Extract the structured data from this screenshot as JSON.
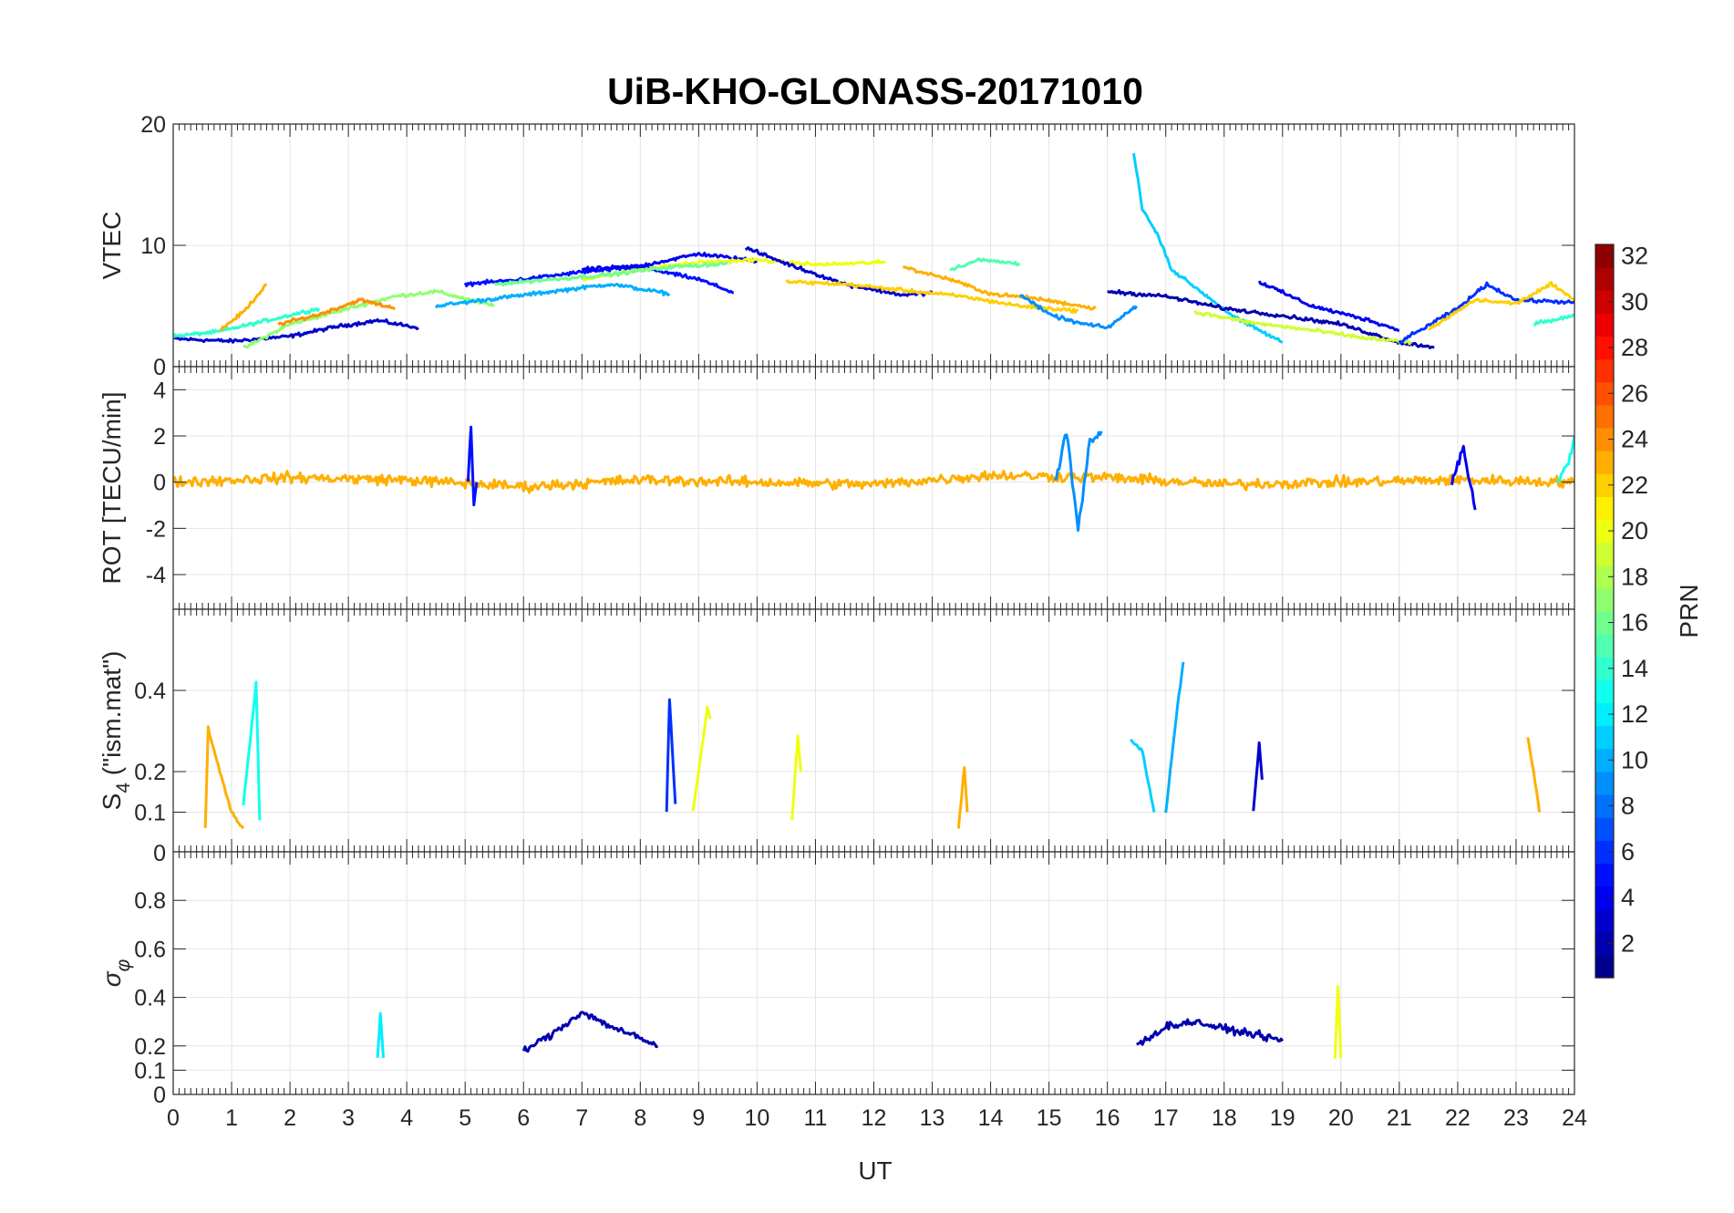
{
  "chart_data": {
    "type": "line",
    "title": "UiB-KHO-GLONASS-20171010",
    "xlabel": "UT",
    "xlim": [
      0,
      24
    ],
    "xticks": [
      "0",
      "1",
      "2",
      "3",
      "4",
      "5",
      "6",
      "7",
      "8",
      "9",
      "10",
      "11",
      "12",
      "13",
      "14",
      "15",
      "16",
      "17",
      "18",
      "19",
      "20",
      "21",
      "22",
      "23",
      "24"
    ],
    "colorbar": {
      "label": "PRN",
      "range": [
        1,
        32
      ],
      "ticks": [
        "2",
        "4",
        "6",
        "8",
        "10",
        "12",
        "14",
        "16",
        "18",
        "20",
        "22",
        "24",
        "26",
        "28",
        "30",
        "32"
      ]
    },
    "panels": [
      {
        "id": "vtec",
        "ylabel": "VTEC",
        "ylim": [
          0,
          20
        ],
        "yticks": [
          {
            "v": 0,
            "t": "0"
          },
          {
            "v": 10,
            "t": "10"
          },
          {
            "v": 20,
            "t": "20"
          }
        ],
        "series": [
          {
            "prn": 3,
            "x": [
              0,
              1.0,
              2.0,
              2.8,
              3.5,
              4.2
            ],
            "y": [
              2.3,
              2.1,
              2.5,
              3.3,
              3.8,
              3.2
            ]
          },
          {
            "prn": 14,
            "x": [
              0,
              0.8,
              1.6,
              2.5
            ],
            "y": [
              2.5,
              2.9,
              3.8,
              4.8
            ]
          },
          {
            "prn": 23,
            "x": [
              0.8,
              1.2,
              1.6
            ],
            "y": [
              3.0,
              4.5,
              6.8
            ]
          },
          {
            "prn": 17,
            "x": [
              1.2,
              2.0,
              3.0,
              3.8,
              4.5,
              5.5
            ],
            "y": [
              1.5,
              3.5,
              4.8,
              5.8,
              6.2,
              5.0
            ]
          },
          {
            "prn": 24,
            "x": [
              1.8,
              2.5,
              3.2,
              3.8
            ],
            "y": [
              3.5,
              4.3,
              5.5,
              4.8
            ]
          },
          {
            "prn": 10,
            "x": [
              4.5,
              5.5,
              6.5,
              7.5,
              8.5
            ],
            "y": [
              5.0,
              5.6,
              6.2,
              6.8,
              6.0
            ]
          },
          {
            "prn": 5,
            "x": [
              5.0,
              6.0,
              7.0,
              8.0,
              9.0,
              9.6
            ],
            "y": [
              6.8,
              7.2,
              7.8,
              8.2,
              7.2,
              6.1
            ]
          },
          {
            "prn": 4,
            "x": [
              7.0,
              8.0,
              9.0,
              10.0
            ],
            "y": [
              8.0,
              8.3,
              9.3,
              8.7
            ]
          },
          {
            "prn": 20,
            "x": [
              7.0,
              8.0,
              9.0,
              10.0,
              11.0,
              12.2
            ],
            "y": [
              7.2,
              8.0,
              8.6,
              8.8,
              8.4,
              8.6
            ]
          },
          {
            "prn": 16,
            "x": [
              5.5,
              6.5,
              7.5,
              8.5,
              9.5
            ],
            "y": [
              6.8,
              7.2,
              7.6,
              8.2,
              8.5
            ]
          },
          {
            "prn": 3,
            "x": [
              9.8,
              10.5,
              11.5,
              12.5,
              13.0
            ],
            "y": [
              9.8,
              8.5,
              6.8,
              5.9,
              6.1
            ]
          },
          {
            "prn": 22,
            "x": [
              10.5,
              11.5,
              12.5,
              13.5,
              14.5,
              15.5
            ],
            "y": [
              7.0,
              6.8,
              6.3,
              5.8,
              5.0,
              4.6
            ]
          },
          {
            "prn": 23,
            "x": [
              12.5,
              13.3,
              14.0,
              14.8,
              15.8
            ],
            "y": [
              8.2,
              7.2,
              6.0,
              5.6,
              4.8
            ]
          },
          {
            "prn": 15,
            "x": [
              13.3,
              13.8,
              14.5
            ],
            "y": [
              8.0,
              8.8,
              8.5
            ]
          },
          {
            "prn": 9,
            "x": [
              14.5,
              15.0,
              15.5,
              16.0,
              16.5
            ],
            "y": [
              6.0,
              4.3,
              3.6,
              3.2,
              5.0
            ]
          },
          {
            "prn": 11,
            "x": [
              16.45,
              16.6,
              16.9,
              17.1,
              17.6,
              18.2,
              19.0
            ],
            "y": [
              17.7,
              13.0,
              10.5,
              8.0,
              6.2,
              4.0,
              2.0
            ]
          },
          {
            "prn": 2,
            "x": [
              16.0,
              17.0,
              18.0,
              19.0,
              20.0,
              21.0,
              21.6
            ],
            "y": [
              6.2,
              5.8,
              4.8,
              4.2,
              3.5,
              2.0,
              1.6
            ]
          },
          {
            "prn": 4,
            "x": [
              18.6,
              19.5,
              20.5,
              21.0
            ],
            "y": [
              7.0,
              5.0,
              3.8,
              3.0
            ]
          },
          {
            "prn": 19,
            "x": [
              17.5,
              18.5,
              19.5,
              20.5,
              21.2
            ],
            "y": [
              4.5,
              3.6,
              3.0,
              2.3,
              2.0
            ]
          },
          {
            "prn": 6,
            "x": [
              21.0,
              22.0,
              22.5,
              23.0,
              24.0
            ],
            "y": [
              2.0,
              4.8,
              6.8,
              5.5,
              5.3
            ]
          },
          {
            "prn": 22,
            "x": [
              21.5,
              22.3,
              23.0,
              23.6,
              24.0
            ],
            "y": [
              3.0,
              5.5,
              5.2,
              6.8,
              5.5
            ]
          },
          {
            "prn": 14,
            "x": [
              23.3,
              23.7,
              24.0
            ],
            "y": [
              3.6,
              3.9,
              4.2
            ]
          }
        ]
      },
      {
        "id": "rot",
        "ylabel": "ROT [TECU/min]",
        "ylim": [
          -5.5,
          5
        ],
        "yticks": [
          {
            "v": -4,
            "t": "-4"
          },
          {
            "v": -2,
            "t": "-2"
          },
          {
            "v": 0,
            "t": "0"
          },
          {
            "v": 2,
            "t": "2"
          },
          {
            "v": 4,
            "t": "4"
          }
        ],
        "series": [
          {
            "prn": 23,
            "x": [
              0,
              2.0,
              4.0,
              6.0,
              8.0,
              10.0,
              12.0,
              14.0,
              16.0,
              18.0,
              20.0,
              22.0,
              24.0
            ],
            "y": [
              0,
              0.2,
              0.1,
              -0.2,
              0.1,
              0,
              -0.1,
              0.3,
              0.2,
              -0.1,
              0,
              0.1,
              0
            ]
          },
          {
            "prn": 5,
            "x": [
              5.05,
              5.1,
              5.15,
              5.2
            ],
            "y": [
              0,
              2.3,
              -1.0,
              0
            ]
          },
          {
            "prn": 9,
            "x": [
              15.1,
              15.3,
              15.5,
              15.7,
              15.9
            ],
            "y": [
              0,
              2.2,
              -2.0,
              1.8,
              2.2
            ]
          },
          {
            "prn": 4,
            "x": [
              21.9,
              22.1,
              22.3
            ],
            "y": [
              0,
              1.5,
              -1.2
            ]
          },
          {
            "prn": 13,
            "x": [
              23.7,
              23.9,
              24.0
            ],
            "y": [
              0,
              0.8,
              2.0
            ]
          }
        ]
      },
      {
        "id": "s4",
        "ylabel": "S4 (\"ism.mat\")",
        "ylim": [
          0,
          0.6
        ],
        "yticks": [
          {
            "v": 0,
            "t": "0"
          },
          {
            "v": 0.1,
            "t": "0.1"
          },
          {
            "v": 0.2,
            "t": "0.2"
          },
          {
            "v": 0.4,
            "t": "0.4"
          }
        ],
        "series": [
          {
            "prn": 23,
            "x": [
              0.55,
              0.6,
              0.7,
              0.8,
              1.0,
              1.2
            ],
            "y": [
              0.06,
              0.31,
              0.25,
              0.2,
              0.1,
              0.06
            ]
          },
          {
            "prn": 13,
            "x": [
              1.2,
              1.35,
              1.42,
              1.48
            ],
            "y": [
              0.12,
              0.32,
              0.42,
              0.08
            ]
          },
          {
            "prn": 6,
            "x": [
              8.45,
              8.5,
              8.55,
              8.6
            ],
            "y": [
              0.1,
              0.38,
              0.25,
              0.12
            ]
          },
          {
            "prn": 20,
            "x": [
              8.9,
              9.05,
              9.15,
              9.2
            ],
            "y": [
              0.1,
              0.25,
              0.36,
              0.33
            ]
          },
          {
            "prn": 20,
            "x": [
              10.6,
              10.7,
              10.75
            ],
            "y": [
              0.08,
              0.29,
              0.2
            ]
          },
          {
            "prn": 23,
            "x": [
              13.45,
              13.55,
              13.6
            ],
            "y": [
              0.06,
              0.21,
              0.1
            ]
          },
          {
            "prn": 11,
            "x": [
              16.4,
              16.6,
              16.8
            ],
            "y": [
              0.28,
              0.25,
              0.1
            ]
          },
          {
            "prn": 10,
            "x": [
              17.0,
              17.2,
              17.3
            ],
            "y": [
              0.1,
              0.36,
              0.47
            ]
          },
          {
            "prn": 3,
            "x": [
              18.5,
              18.6,
              18.65
            ],
            "y": [
              0.1,
              0.27,
              0.18
            ]
          },
          {
            "prn": 23,
            "x": [
              23.2,
              23.3,
              23.4
            ],
            "y": [
              0.28,
              0.2,
              0.1
            ]
          }
        ]
      },
      {
        "id": "sigma",
        "ylabel": "σφ",
        "ylim": [
          0,
          1
        ],
        "yticks": [
          {
            "v": 0,
            "t": "0"
          },
          {
            "v": 0.1,
            "t": "0.1"
          },
          {
            "v": 0.2,
            "t": "0.2"
          },
          {
            "v": 0.4,
            "t": "0.4"
          },
          {
            "v": 0.6,
            "t": "0.6"
          },
          {
            "v": 0.8,
            "t": "0.8"
          }
        ],
        "series": [
          {
            "prn": 2,
            "x": [
              6.0,
              6.5,
              7.0,
              7.5,
              8.0,
              8.3
            ],
            "y": [
              0.18,
              0.25,
              0.34,
              0.28,
              0.23,
              0.2
            ]
          },
          {
            "prn": 2,
            "x": [
              16.5,
              17.0,
              17.5,
              18.0,
              18.5,
              19.0
            ],
            "y": [
              0.2,
              0.28,
              0.3,
              0.27,
              0.25,
              0.22
            ]
          },
          {
            "prn": 20,
            "x": [
              19.9,
              19.95,
              20.0
            ],
            "y": [
              0.15,
              0.45,
              0.15
            ]
          },
          {
            "prn": 12,
            "x": [
              3.5,
              3.55,
              3.6
            ],
            "y": [
              0.15,
              0.33,
              0.15
            ]
          }
        ]
      }
    ]
  }
}
